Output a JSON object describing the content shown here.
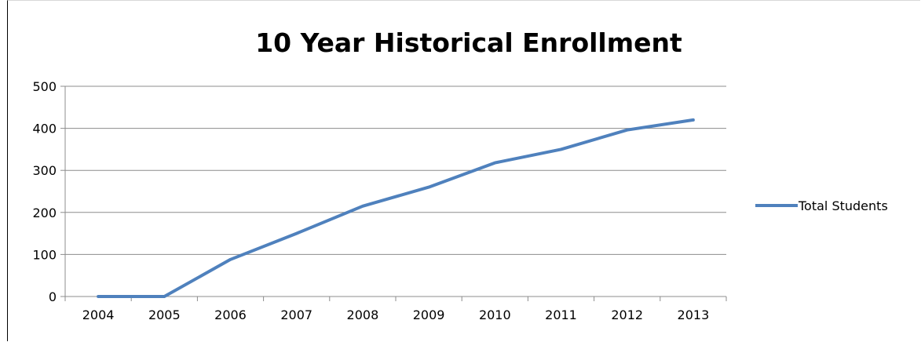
{
  "chart_data": {
    "type": "line",
    "title": "10 Year Historical Enrollment",
    "xlabel": "",
    "ylabel": "",
    "categories": [
      "2004",
      "2005",
      "2006",
      "2007",
      "2008",
      "2009",
      "2010",
      "2011",
      "2012",
      "2013"
    ],
    "y_ticks": [
      "0",
      "100",
      "200",
      "300",
      "400",
      "500"
    ],
    "ylim": [
      0,
      500
    ],
    "grid": "horizontal",
    "legend_position": "right",
    "series": [
      {
        "name": "Total Students",
        "color": "#4f81bd",
        "values": [
          0,
          0,
          88,
          150,
          215,
          260,
          318,
          350,
          396,
          420
        ]
      }
    ]
  }
}
